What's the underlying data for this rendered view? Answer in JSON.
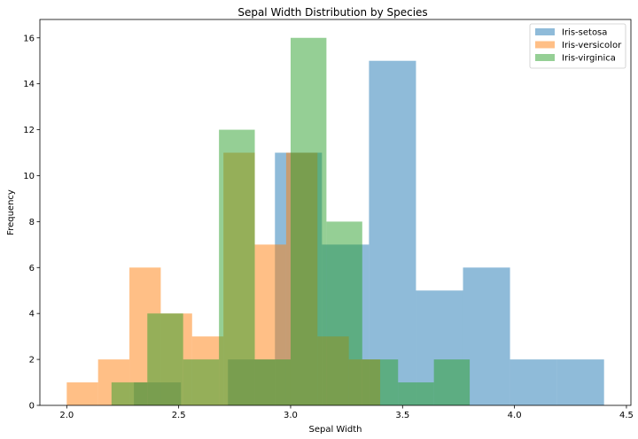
{
  "chart_data": {
    "type": "histogram",
    "title": "Sepal Width Distribution by Species",
    "xlabel": "Sepal Width",
    "ylabel": "Frequency",
    "xlim": [
      1.88,
      4.52
    ],
    "ylim": [
      0,
      16.8
    ],
    "xticks": [
      "2.0",
      "2.5",
      "3.0",
      "3.5",
      "4.0",
      "4.5"
    ],
    "yticks": [
      "0",
      "2",
      "4",
      "6",
      "8",
      "10",
      "12",
      "14",
      "16"
    ],
    "grid": false,
    "legend_position": "top-right",
    "bar_opacity": 0.5,
    "series": [
      {
        "name": "Iris-setosa",
        "color": "#1f77b4",
        "bin_edges": [
          2.3,
          2.51,
          2.72,
          2.93,
          3.14,
          3.35,
          3.56,
          3.77,
          3.98,
          4.19,
          4.4
        ],
        "counts": [
          1,
          0,
          2,
          11,
          7,
          15,
          5,
          6,
          2,
          2
        ]
      },
      {
        "name": "Iris-versicolor",
        "color": "#ff7f0e",
        "bin_edges": [
          2.0,
          2.14,
          2.28,
          2.42,
          2.56,
          2.7,
          2.84,
          2.98,
          3.12,
          3.26,
          3.4
        ],
        "counts": [
          1,
          2,
          6,
          4,
          3,
          11,
          7,
          11,
          3,
          2
        ]
      },
      {
        "name": "Iris-virginica",
        "color": "#2ca02c",
        "bin_edges": [
          2.2,
          2.36,
          2.52,
          2.68,
          2.84,
          3.0,
          3.16,
          3.32,
          3.48,
          3.64,
          3.8
        ],
        "counts": [
          1,
          4,
          2,
          12,
          2,
          16,
          8,
          2,
          1,
          2
        ]
      }
    ]
  }
}
